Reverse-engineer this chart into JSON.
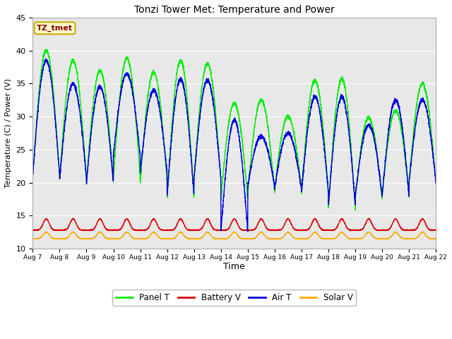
{
  "title": "Tonzi Tower Met: Temperature and Power",
  "xlabel": "Time",
  "ylabel": "Temperature (C) / Power (V)",
  "ylim": [
    10,
    45
  ],
  "fig_bg_color": "#ffffff",
  "plot_bg_color": "#e8e8e8",
  "annotation_text": "TZ_tmet",
  "annotation_text_color": "#8b0000",
  "annotation_box_facecolor": "#ffffcc",
  "annotation_box_edgecolor": "#ccaa00",
  "grid_color": "#ffffff",
  "panel_t_color": "#00ee00",
  "battery_v_color": "#dd0000",
  "air_t_color": "#0000dd",
  "solar_v_color": "#ffaa00",
  "n_days": 15,
  "n_pts": 288,
  "panel_t_day_max": [
    40.0,
    38.5,
    37.0,
    38.8,
    36.7,
    38.5,
    38.0,
    32.0,
    32.5,
    30.0,
    35.5,
    35.7,
    29.8,
    30.9,
    35.0
  ],
  "panel_t_day_min": [
    21.0,
    20.5,
    20.0,
    20.5,
    20.0,
    17.5,
    20.5,
    17.5,
    18.5,
    19.0,
    18.5,
    16.0,
    17.5,
    18.0,
    20.0
  ],
  "air_t_day_max": [
    38.5,
    35.0,
    34.5,
    36.5,
    34.0,
    35.7,
    35.5,
    29.5,
    27.0,
    27.5,
    33.0,
    33.0,
    28.7,
    32.5,
    32.5
  ],
  "air_t_day_min": [
    21.0,
    20.5,
    20.0,
    24.0,
    21.5,
    18.0,
    20.5,
    12.5,
    19.5,
    19.0,
    18.5,
    16.5,
    18.0,
    18.0,
    20.0
  ],
  "battery_v_base": 12.8,
  "battery_v_peak": 14.5,
  "solar_v_base": 11.5,
  "solar_v_peak": 12.5,
  "tick_labels": [
    "Aug 7",
    "Aug 8",
    "Aug 9",
    "Aug 10",
    "Aug 11",
    "Aug 12",
    "Aug 13",
    "Aug 14",
    "Aug 15",
    "Aug 16",
    "Aug 17",
    "Aug 18",
    "Aug 19",
    "Aug 20",
    "Aug 21",
    "Aug 22"
  ],
  "legend_labels": [
    "Panel T",
    "Battery V",
    "Air T",
    "Solar V"
  ],
  "yticks": [
    10,
    15,
    20,
    25,
    30,
    35,
    40,
    45
  ],
  "linewidth": 1.0
}
